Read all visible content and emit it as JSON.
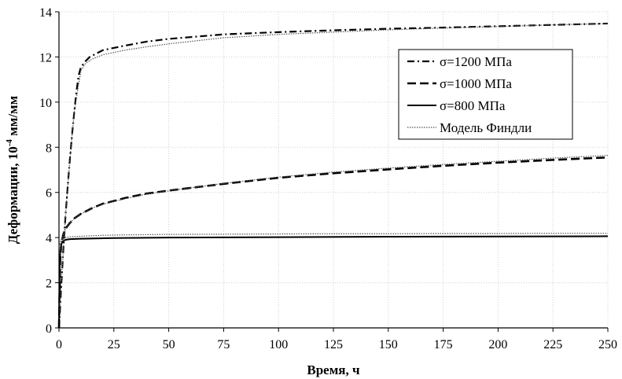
{
  "chart_data": {
    "type": "line",
    "title": "",
    "xlabel": "Время, ч",
    "ylabel": "Деформации, 10",
    "ylabel_sup": "-4",
    "ylabel_tail": " мм/мм",
    "xlim": [
      0,
      250
    ],
    "ylim": [
      0,
      14
    ],
    "xticks": [
      0,
      25,
      50,
      75,
      100,
      125,
      150,
      175,
      200,
      225,
      250
    ],
    "yticks": [
      0,
      2,
      4,
      6,
      8,
      10,
      12,
      14
    ],
    "grid": true,
    "legend_position": "top-right",
    "series": [
      {
        "name": "σ=1200 МПа",
        "style": "dashdot",
        "x": [
          0,
          1,
          2,
          3,
          4,
          5,
          6,
          7,
          8,
          9,
          10,
          12,
          14,
          17,
          20,
          25,
          30,
          40,
          50,
          60,
          75,
          100,
          125,
          150,
          175,
          200,
          225,
          250
        ],
        "y": [
          0,
          1.8,
          3.5,
          5.0,
          6.3,
          7.5,
          8.6,
          9.6,
          10.5,
          11.2,
          11.55,
          11.8,
          12.0,
          12.15,
          12.3,
          12.4,
          12.5,
          12.68,
          12.8,
          12.88,
          13.0,
          13.1,
          13.18,
          13.25,
          13.3,
          13.36,
          13.42,
          13.48
        ]
      },
      {
        "name": "σ=1000 МПа",
        "style": "dashed",
        "x": [
          0,
          0.5,
          1,
          2,
          3,
          5,
          7,
          10,
          15,
          20,
          25,
          30,
          40,
          50,
          60,
          75,
          100,
          125,
          150,
          175,
          200,
          225,
          250
        ],
        "y": [
          0,
          2.9,
          3.7,
          4.15,
          4.4,
          4.65,
          4.85,
          5.05,
          5.3,
          5.5,
          5.62,
          5.75,
          5.95,
          6.08,
          6.2,
          6.38,
          6.65,
          6.85,
          7.02,
          7.18,
          7.32,
          7.44,
          7.55
        ]
      },
      {
        "name": "σ=800 МПа",
        "style": "solid",
        "x": [
          0,
          0.3,
          0.6,
          1,
          1.5,
          2,
          3,
          5,
          10,
          25,
          50,
          100,
          150,
          200,
          250
        ],
        "y": [
          0,
          2.6,
          3.4,
          3.7,
          3.8,
          3.85,
          3.9,
          3.93,
          3.95,
          3.98,
          4.0,
          4.02,
          4.04,
          4.05,
          4.06
        ]
      },
      {
        "name": "Модель Финдли",
        "style": "dotted",
        "x": [
          0,
          1,
          2,
          3,
          5,
          10,
          20,
          30,
          50,
          75,
          100,
          125,
          150,
          175,
          200,
          225,
          250
        ],
        "y": [
          3.6,
          3.92,
          3.98,
          4.0,
          4.03,
          4.06,
          4.1,
          4.12,
          4.14,
          4.15,
          4.16,
          4.17,
          4.17,
          4.18,
          4.18,
          4.19,
          4.19
        ]
      },
      {
        "name": "Модель Финдли (σ=1000 МПа)",
        "style": "dotted",
        "in_legend": false,
        "x": [
          0.3,
          1,
          2,
          3,
          5,
          7,
          10,
          15,
          20,
          25,
          30,
          40,
          50,
          60,
          75,
          100,
          125,
          150,
          175,
          200,
          225,
          250
        ],
        "y": [
          3.3,
          3.8,
          4.15,
          4.38,
          4.65,
          4.85,
          5.05,
          5.3,
          5.48,
          5.6,
          5.72,
          5.93,
          6.07,
          6.2,
          6.4,
          6.68,
          6.9,
          7.08,
          7.24,
          7.38,
          7.52,
          7.64
        ]
      },
      {
        "name": "Модель Финдли (σ=1200 МПа)",
        "style": "dotted",
        "in_legend": false,
        "x": [
          0.3,
          1,
          2,
          3,
          5,
          7,
          10,
          12,
          15,
          20,
          25,
          30,
          40,
          50,
          75,
          100,
          125,
          150,
          175,
          200,
          225,
          250
        ],
        "y": [
          0.8,
          1.9,
          3.5,
          5.0,
          7.5,
          9.6,
          11.4,
          11.7,
          11.9,
          12.1,
          12.2,
          12.3,
          12.45,
          12.58,
          12.85,
          13.0,
          13.1,
          13.2,
          13.28,
          13.35,
          13.42,
          13.48
        ]
      }
    ]
  }
}
